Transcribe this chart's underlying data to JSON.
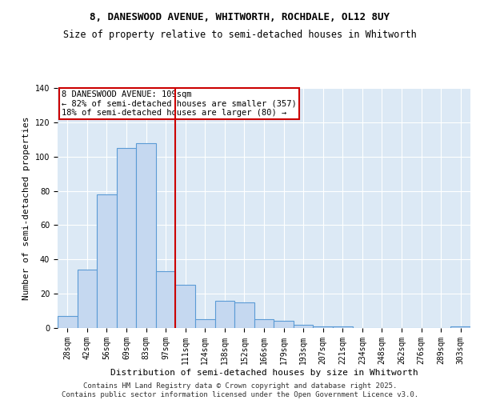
{
  "title1": "8, DANESWOOD AVENUE, WHITWORTH, ROCHDALE, OL12 8UY",
  "title2": "Size of property relative to semi-detached houses in Whitworth",
  "xlabel": "Distribution of semi-detached houses by size in Whitworth",
  "ylabel": "Number of semi-detached properties",
  "categories": [
    "28sqm",
    "42sqm",
    "56sqm",
    "69sqm",
    "83sqm",
    "97sqm",
    "111sqm",
    "124sqm",
    "138sqm",
    "152sqm",
    "166sqm",
    "179sqm",
    "193sqm",
    "207sqm",
    "221sqm",
    "234sqm",
    "248sqm",
    "262sqm",
    "276sqm",
    "289sqm",
    "303sqm"
  ],
  "values": [
    7,
    34,
    78,
    105,
    108,
    33,
    25,
    5,
    16,
    15,
    5,
    4,
    2,
    1,
    1,
    0,
    0,
    0,
    0,
    0,
    1
  ],
  "bar_color": "#c5d8f0",
  "bar_edge_color": "#5b9bd5",
  "vline_color": "#cc0000",
  "vline_x": 5.5,
  "annotation_line1": "8 DANESWOOD AVENUE: 109sqm",
  "annotation_line2": "← 82% of semi-detached houses are smaller (357)",
  "annotation_line3": "18% of semi-detached houses are larger (80) →",
  "annotation_box_color": "#ffffff",
  "annotation_box_edge": "#cc0000",
  "ylim": [
    0,
    140
  ],
  "yticks": [
    0,
    20,
    40,
    60,
    80,
    100,
    120,
    140
  ],
  "plot_background": "#dce9f5",
  "footer1": "Contains HM Land Registry data © Crown copyright and database right 2025.",
  "footer2": "Contains public sector information licensed under the Open Government Licence v3.0.",
  "title_fontsize": 9,
  "subtitle_fontsize": 8.5,
  "axis_label_fontsize": 8,
  "tick_fontsize": 7,
  "annotation_fontsize": 7.5,
  "footer_fontsize": 6.5
}
